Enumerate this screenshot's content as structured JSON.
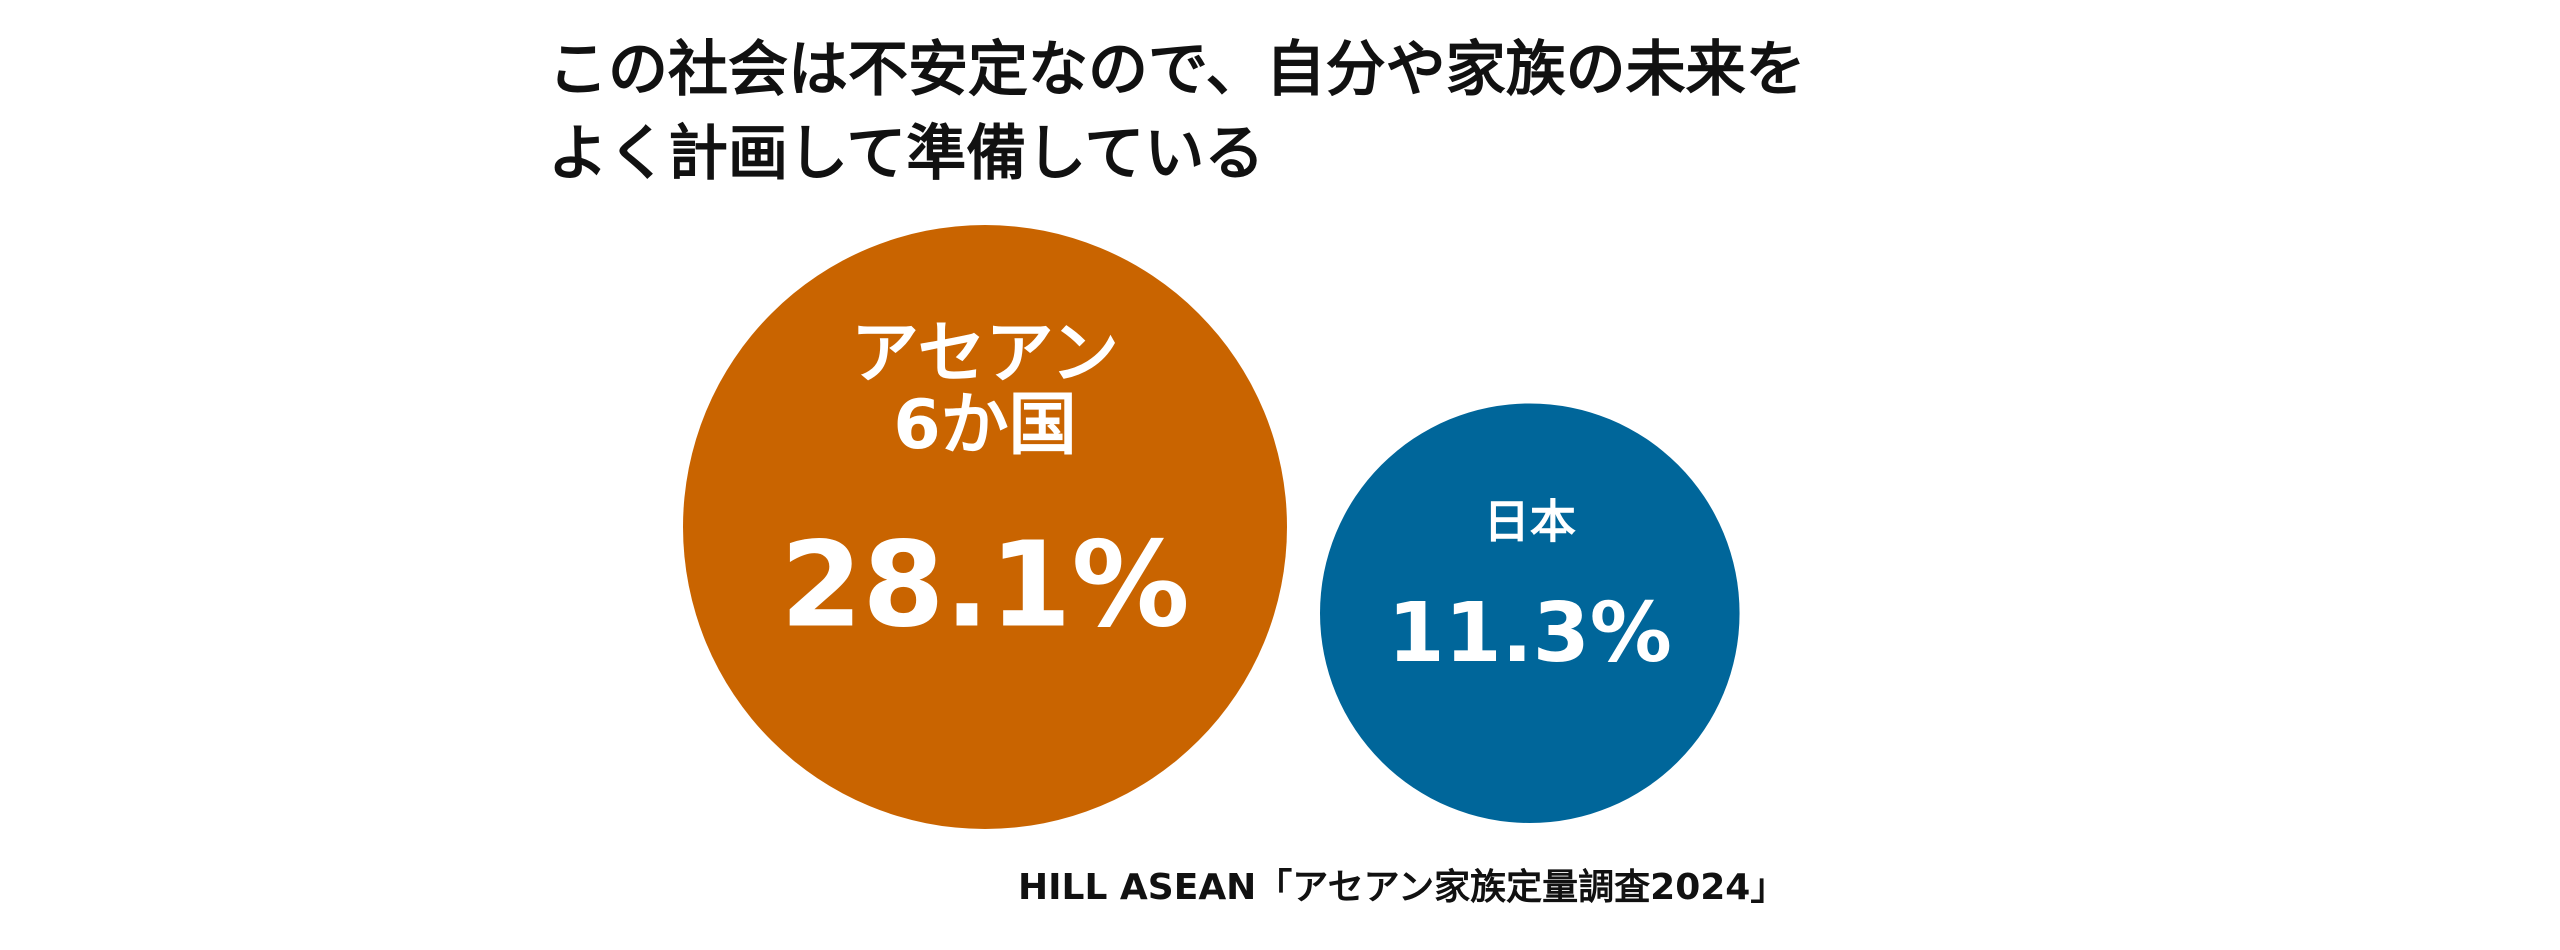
{
  "title": {
    "line1": "この社会は不安定なので、自分や家族の未来を",
    "line2": "よく計画して準備している"
  },
  "chart_data": {
    "type": "bubble",
    "title": "この社会は不安定なので、自分や家族の未来をよく計画して準備している",
    "unit": "%",
    "categories": [
      "アセアン6か国",
      "日本"
    ],
    "series": [
      {
        "label_lines": [
          "アセアン",
          "6か国"
        ],
        "value": 28.1,
        "value_label": "28.1%",
        "color": "#C96400"
      },
      {
        "label_lines": [
          "日本"
        ],
        "value": 11.3,
        "value_label": "11.3%",
        "color": "#00669A"
      }
    ]
  },
  "source": "HILL ASEAN「アセアン家族定量調査2024」"
}
